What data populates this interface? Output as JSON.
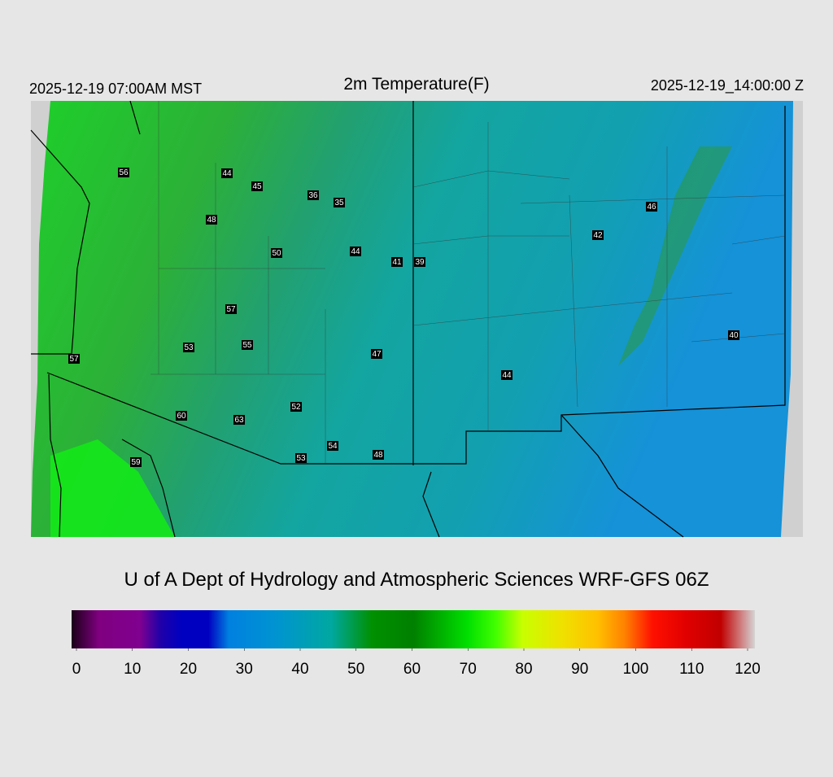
{
  "header": {
    "left": "2025-12-19 07:00AM MST",
    "title": "2m Temperature(F)",
    "right": "2025-12-19_14:00:00 Z"
  },
  "stations": [
    56,
    44,
    45,
    36,
    35,
    48,
    50,
    44,
    41,
    39,
    46,
    42,
    57,
    53,
    55,
    47,
    57,
    44,
    40,
    52,
    60,
    63,
    54,
    53,
    48,
    59
  ],
  "credit": "U of A Dept of Hydrology and Atmospheric Sciences WRF-GFS 06Z",
  "colorbar": {
    "lim": [
      0,
      120
    ],
    "ticks": [
      0,
      10,
      20,
      30,
      40,
      50,
      60,
      70,
      80,
      90,
      100,
      110,
      120
    ]
  }
}
